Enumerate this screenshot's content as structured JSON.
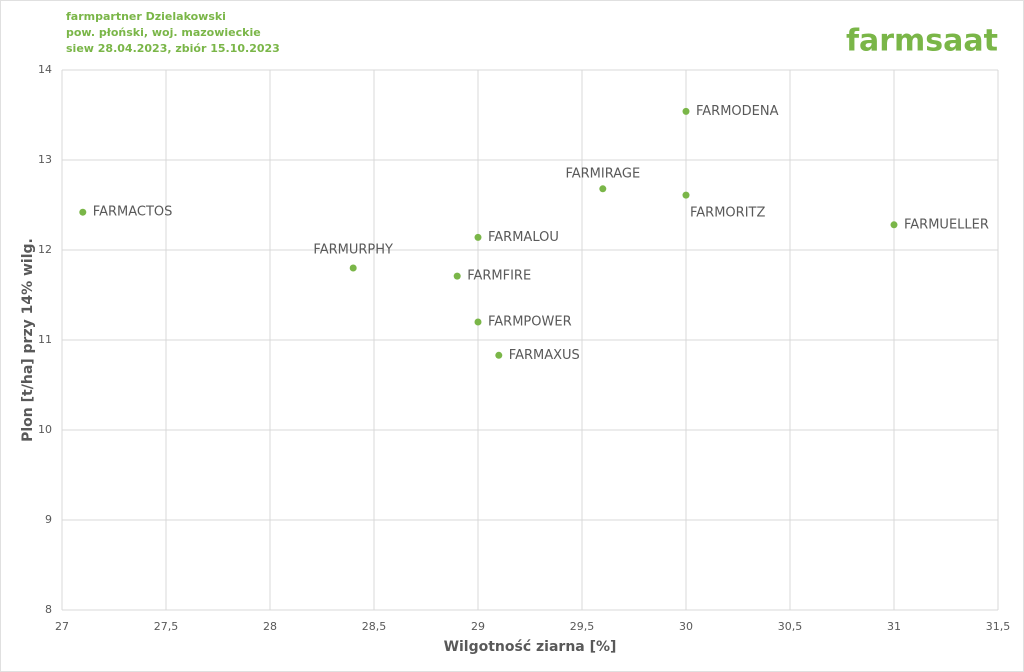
{
  "chart_data": {
    "type": "scatter",
    "title": "farmpartner Dzielakowski",
    "subtitle": "pow. płoński, woj. mazowieckie",
    "note": "siew 28.04.2023, zbiór 15.10.2023",
    "logo": "farmsaat",
    "x_label": "Wilgotność ziarna [%]",
    "y_label": "Plon [t/ha] przy 14% wilg.",
    "color": "#7ab648",
    "point_labels": [
      "FARMACTOS",
      "FARMURPHY",
      "FARMFIRE",
      "FARMALOU",
      "FARMPOWER",
      "FARMAXUS",
      "FARMIRAGE",
      "FARMODENA",
      "FARMORITZ",
      "FARMUELLER"
    ],
    "x": [
      27.1,
      28.4,
      28.9,
      29.0,
      29.0,
      29.1,
      29.6,
      30.0,
      30.0,
      31.0
    ],
    "values": [
      12.42,
      11.8,
      11.71,
      12.14,
      11.2,
      10.83,
      12.68,
      13.54,
      12.61,
      12.28
    ],
    "xlim": [
      27,
      31.5
    ],
    "xticks": [
      27,
      {
        "value": 27.5,
        "label": "27,5"
      },
      28,
      {
        "value": 28.5,
        "label": "28,5"
      },
      29,
      {
        "value": 29.5,
        "label": "29,5"
      },
      30,
      {
        "value": 30.5,
        "label": "30,5"
      },
      31,
      {
        "value": 31.5,
        "label": "31,5"
      }
    ],
    "ylim": [
      8,
      14
    ],
    "yticks": [
      8,
      9,
      10,
      11,
      12,
      13,
      14
    ],
    "grid": true
  }
}
